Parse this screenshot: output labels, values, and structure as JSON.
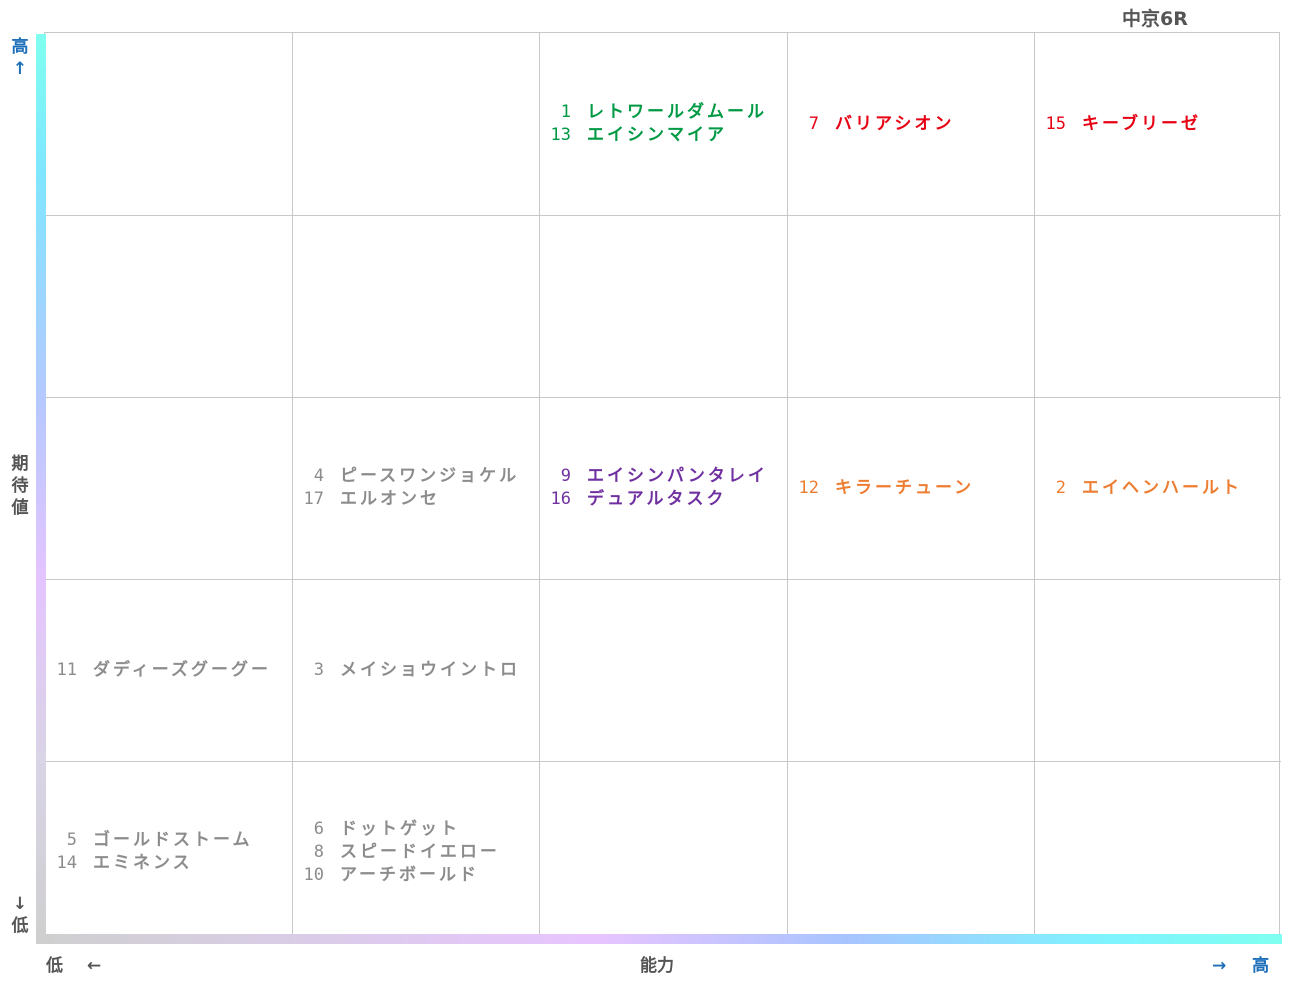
{
  "race_title": "中京6R",
  "chart_data": {
    "type": "table",
    "title": "中京6R",
    "xlabel": "能力",
    "ylabel": "期待値",
    "x_low_label": "低",
    "x_high_label": "高",
    "y_low_label": "低",
    "y_high_label": "高",
    "columns": 5,
    "rows": 5,
    "cells": [
      {
        "row": 0,
        "col": 2,
        "color": "#009944",
        "entries": [
          {
            "num": "1",
            "name": "レトワールダムール"
          },
          {
            "num": "13",
            "name": "エイシンマイア"
          }
        ]
      },
      {
        "row": 0,
        "col": 3,
        "color": "#e60012",
        "entries": [
          {
            "num": "7",
            "name": "バリアシオン"
          }
        ]
      },
      {
        "row": 0,
        "col": 4,
        "color": "#e60012",
        "entries": [
          {
            "num": "15",
            "name": "キーブリーゼ"
          }
        ]
      },
      {
        "row": 2,
        "col": 1,
        "color": "#8c8c8c",
        "entries": [
          {
            "num": "4",
            "name": "ピースワンジョケル"
          },
          {
            "num": "17",
            "name": "エルオンセ"
          }
        ]
      },
      {
        "row": 2,
        "col": 2,
        "color": "#7030a0",
        "entries": [
          {
            "num": "9",
            "name": "エイシンパンタレイ"
          },
          {
            "num": "16",
            "name": "デュアルタスク"
          }
        ]
      },
      {
        "row": 2,
        "col": 3,
        "color": "#ed7d31",
        "entries": [
          {
            "num": "12",
            "name": "キラーチューン"
          }
        ]
      },
      {
        "row": 2,
        "col": 4,
        "color": "#ed7d31",
        "entries": [
          {
            "num": "2",
            "name": "エイヘンハールト"
          }
        ]
      },
      {
        "row": 3,
        "col": 0,
        "color": "#8c8c8c",
        "entries": [
          {
            "num": "11",
            "name": "ダディーズグーグー"
          }
        ]
      },
      {
        "row": 3,
        "col": 1,
        "color": "#8c8c8c",
        "entries": [
          {
            "num": "3",
            "name": "メイショウイントロ"
          }
        ]
      },
      {
        "row": 4,
        "col": 0,
        "color": "#8c8c8c",
        "entries": [
          {
            "num": "5",
            "name": "ゴールドストーム"
          },
          {
            "num": "14",
            "name": "エミネンス"
          }
        ]
      },
      {
        "row": 4,
        "col": 1,
        "color": "#8c8c8c",
        "entries": [
          {
            "num": "6",
            "name": "ドットゲット"
          },
          {
            "num": "8",
            "name": "スピードイエロー"
          },
          {
            "num": "10",
            "name": "アーチボールド"
          }
        ]
      }
    ]
  }
}
